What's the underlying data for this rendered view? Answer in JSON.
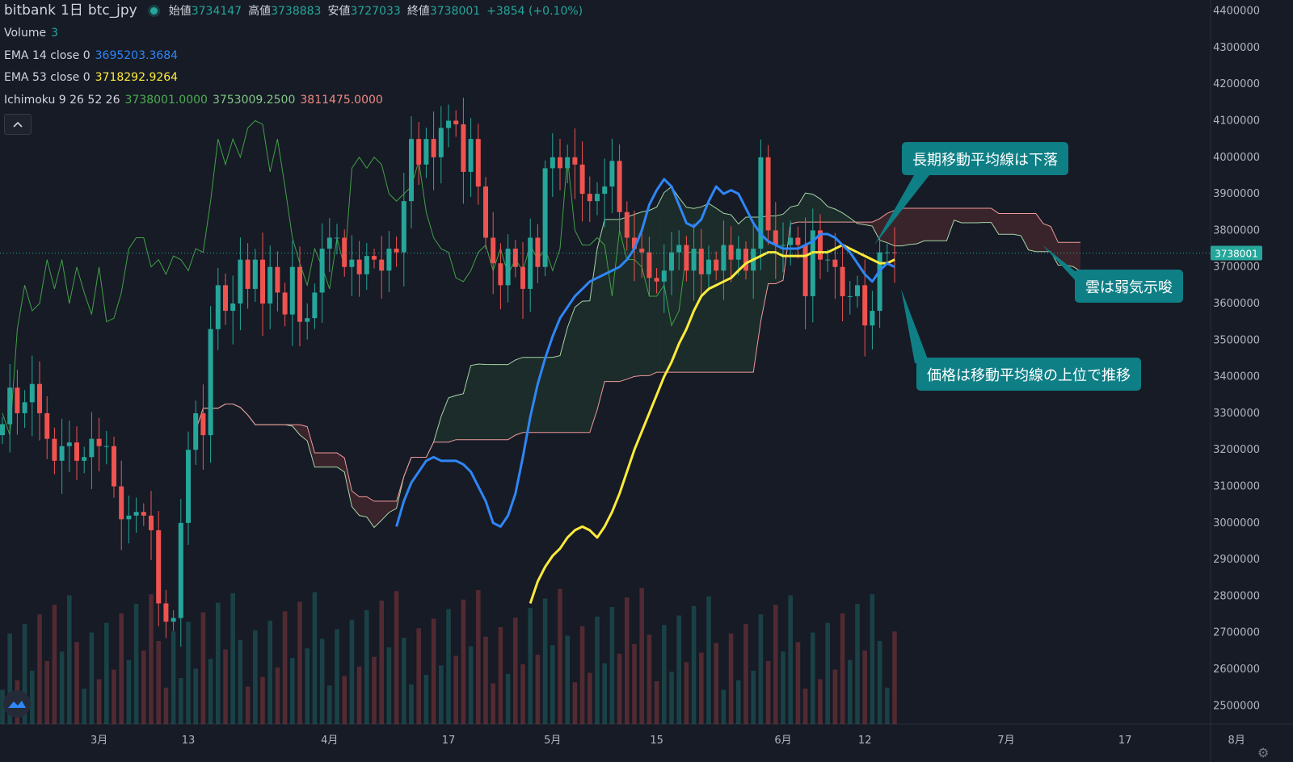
{
  "header": {
    "exchange": "bitbank",
    "interval": "1日",
    "symbol": "btc_jpy",
    "ohlc": [
      {
        "label": "始値",
        "value": "3734147"
      },
      {
        "label": "高値",
        "value": "3738883"
      },
      {
        "label": "安値",
        "value": "3727033"
      },
      {
        "label": "終値",
        "value": "3738001"
      }
    ],
    "change": "+3854 (+0.10%)"
  },
  "indicators": {
    "volume": {
      "name": "Volume",
      "value": "3"
    },
    "ema14": {
      "name": "EMA 14 close 0",
      "value": "3695203.3684"
    },
    "ema53": {
      "name": "EMA 53 close 0",
      "value": "3718292.9264"
    },
    "ichimoku": {
      "name": "Ichimoku 9 26 52 26",
      "v1": "3738001.0000",
      "v2": "3753009.2500",
      "v3": "3811475.0000"
    }
  },
  "controls": {
    "collapse_icon": "chevron-up-icon",
    "settings_icon": "gear-icon",
    "logo_icon": "tradingview-logo-icon"
  },
  "annotations": {
    "a1": "長期移動平均線は下落",
    "a2": "雲は弱気示唆",
    "a3": "価格は移動平均線の上位で推移"
  },
  "colors": {
    "background": "#161b26",
    "up": "#26a69a",
    "down": "#ef5350",
    "ema14": "#2f86f6",
    "ema53": "#ffeb3b",
    "annotation": "#0f7f86",
    "kumo_bull": "#3d5a40",
    "kumo_bear": "#5c2f36"
  },
  "chart_data": {
    "type": "candlestick",
    "yaxis": {
      "min": 2450000,
      "max": 4430000,
      "ticks": [
        "4400000",
        "4300000",
        "4200000",
        "4100000",
        "4000000",
        "3900000",
        "3800000",
        "3700000",
        "3600000",
        "3500000",
        "3400000",
        "3300000",
        "3200000",
        "3100000",
        "3000000",
        "2900000",
        "2800000",
        "2700000",
        "2600000",
        "2500000"
      ]
    },
    "last_price": "3738001",
    "xaxis": {
      "total_days": 183,
      "labels": [
        {
          "text": "3月",
          "day": 13
        },
        {
          "text": "13",
          "day": 25
        },
        {
          "text": "4月",
          "day": 44
        },
        {
          "text": "17",
          "day": 60
        },
        {
          "text": "5月",
          "day": 74
        },
        {
          "text": "15",
          "day": 88
        },
        {
          "text": "6月",
          "day": 105
        },
        {
          "text": "12",
          "day": 116
        },
        {
          "text": "7月",
          "day": 135
        },
        {
          "text": "17",
          "day": 151
        },
        {
          "text": "8月",
          "day": 166
        }
      ]
    },
    "candles_close": [
      3270000,
      3370000,
      3300000,
      3330000,
      3380000,
      3300000,
      3230000,
      3170000,
      3210000,
      3220000,
      3170000,
      3180000,
      3230000,
      3210000,
      3210000,
      3100000,
      3010000,
      3020000,
      3030000,
      3020000,
      2980000,
      2780000,
      2730000,
      2740000,
      3000000,
      3200000,
      3300000,
      3240000,
      3530000,
      3650000,
      3580000,
      3600000,
      3720000,
      3640000,
      3720000,
      3600000,
      3700000,
      3630000,
      3570000,
      3700000,
      3550000,
      3560000,
      3630000,
      3750000,
      3780000,
      3780000,
      3700000,
      3720000,
      3680000,
      3730000,
      3720000,
      3690000,
      3750000,
      3740000,
      3880000,
      4050000,
      3980000,
      4050000,
      4000000,
      4080000,
      4100000,
      4090000,
      3960000,
      4050000,
      3920000,
      3780000,
      3710000,
      3650000,
      3750000,
      3700000,
      3640000,
      3780000,
      3700000,
      3970000,
      4000000,
      3970000,
      4000000,
      3980000,
      3900000,
      3880000,
      3900000,
      3920000,
      3990000,
      3850000,
      3780000,
      3750000,
      3740000,
      3670000,
      3660000,
      3690000,
      3740000,
      3760000,
      3690000,
      3750000,
      3680000,
      3720000,
      3690000,
      3760000,
      3720000,
      3750000,
      3690000,
      3750000,
      4000000,
      3800000,
      3760000,
      3760000,
      3780000,
      3760000,
      3620000,
      3800000,
      3720000,
      3720000,
      3700000,
      3620000,
      3620000,
      3650000,
      3540000,
      3580000,
      3740000,
      3740000,
      3738001
    ],
    "ema14": [
      2990000,
      3060000,
      3110000,
      3140000,
      3170000,
      3180000,
      3170000,
      3170000,
      3170000,
      3160000,
      3140000,
      3100000,
      3060000,
      3000000,
      2990000,
      3020000,
      3080000,
      3180000,
      3290000,
      3380000,
      3450000,
      3510000,
      3560000,
      3590000,
      3620000,
      3640000,
      3660000,
      3670000,
      3680000,
      3690000,
      3700000,
      3720000,
      3750000,
      3800000,
      3870000,
      3910000,
      3940000,
      3920000,
      3870000,
      3820000,
      3810000,
      3830000,
      3880000,
      3920000,
      3900000,
      3910000,
      3900000,
      3860000,
      3820000,
      3790000,
      3770000,
      3760000,
      3750000,
      3750000,
      3750000,
      3760000,
      3770000,
      3790000,
      3790000,
      3780000,
      3760000,
      3740000,
      3710000,
      3680000,
      3660000,
      3690000,
      3710000,
      3700000
    ],
    "ema53": [
      2780000,
      2840000,
      2880000,
      2910000,
      2930000,
      2960000,
      2980000,
      2990000,
      2980000,
      2960000,
      2990000,
      3030000,
      3080000,
      3140000,
      3200000,
      3250000,
      3300000,
      3350000,
      3400000,
      3440000,
      3490000,
      3530000,
      3580000,
      3620000,
      3640000,
      3650000,
      3660000,
      3670000,
      3690000,
      3710000,
      3720000,
      3730000,
      3740000,
      3740000,
      3730000,
      3730000,
      3730000,
      3730000,
      3740000,
      3740000,
      3740000,
      3750000,
      3760000,
      3750000,
      3740000,
      3730000,
      3720000,
      3710000,
      3710000,
      3720000
    ]
  }
}
